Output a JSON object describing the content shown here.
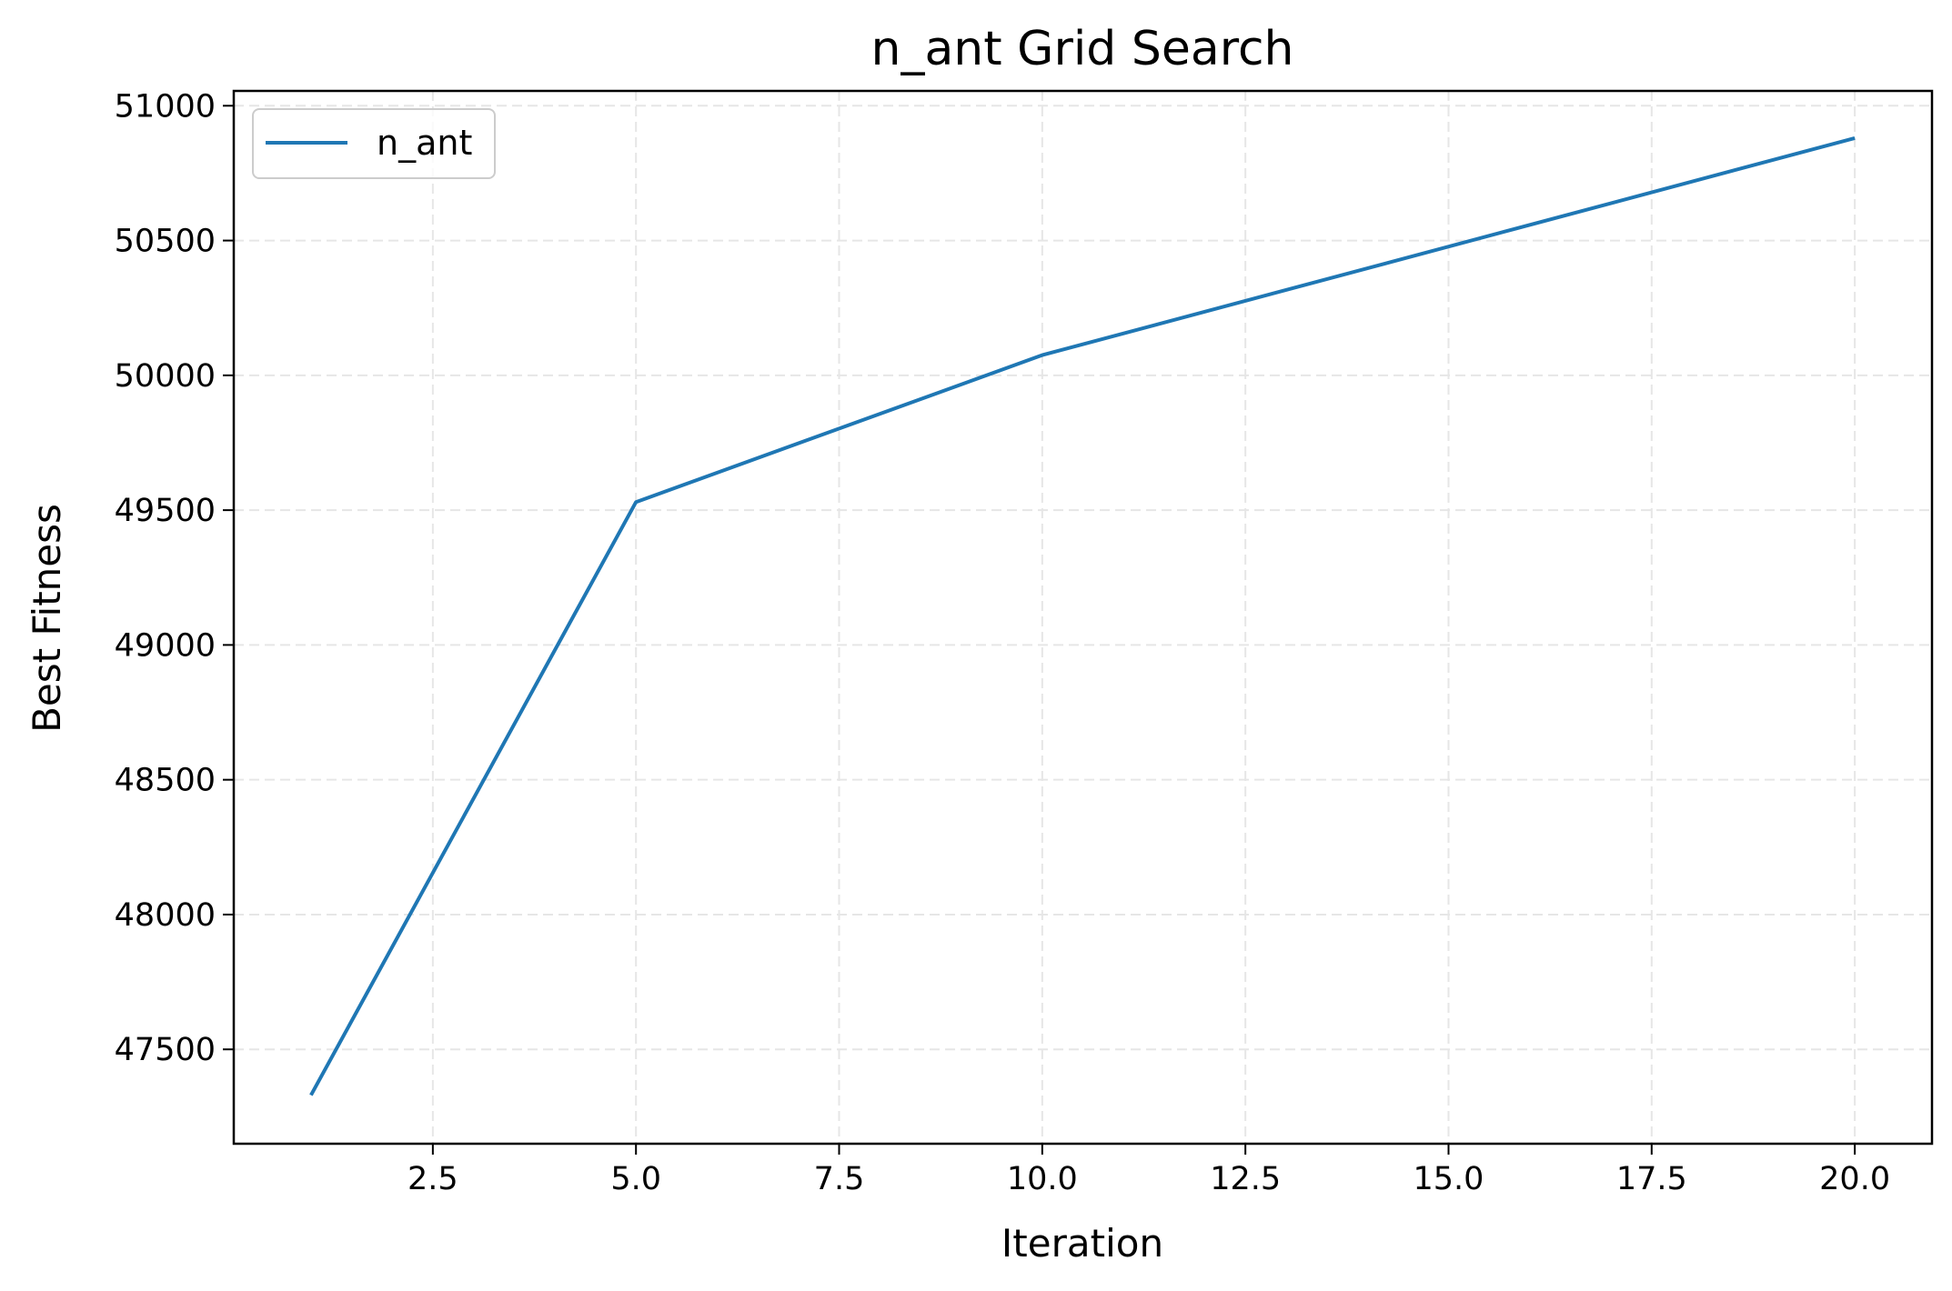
{
  "chart_data": {
    "type": "line",
    "title": "n_ant Grid Search",
    "xlabel": "Iteration",
    "ylabel": "Best Fitness",
    "xlim": [
      0.05,
      20.95
    ],
    "ylim": [
      47150,
      51055
    ],
    "x_ticks": [
      2.5,
      5.0,
      7.5,
      10.0,
      12.5,
      15.0,
      17.5,
      20.0
    ],
    "x_tick_labels": [
      "2.5",
      "5.0",
      "7.5",
      "10.0",
      "12.5",
      "15.0",
      "17.5",
      "20.0"
    ],
    "y_ticks": [
      47500,
      48000,
      48500,
      49000,
      49500,
      50000,
      50500,
      51000
    ],
    "y_tick_labels": [
      "47500",
      "48000",
      "48500",
      "49000",
      "49500",
      "50000",
      "50500",
      "51000"
    ],
    "grid": true,
    "legend": {
      "position": "upper-left",
      "entries": [
        "n_ant"
      ]
    },
    "series": [
      {
        "name": "n_ant",
        "color": "#1f77b4",
        "x": [
          1,
          5,
          10,
          20
        ],
        "y": [
          47330,
          49530,
          50075,
          50880
        ]
      }
    ]
  }
}
